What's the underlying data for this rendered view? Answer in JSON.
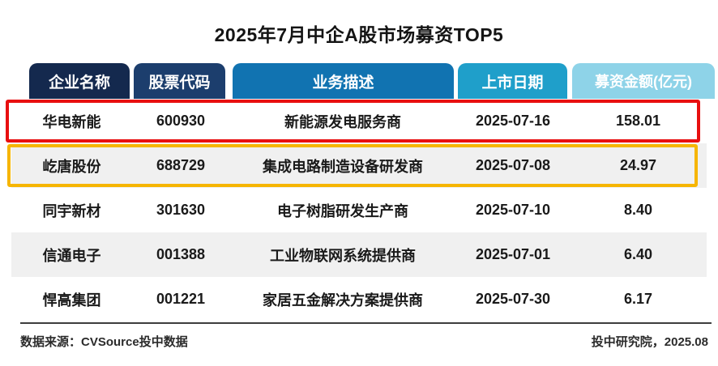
{
  "title": "2025年7月中企A股市场募资TOP5",
  "colors": {
    "header1": "#14294e",
    "header2": "#1c3e6d",
    "header3": "#1173b1",
    "header4": "#1f9fca",
    "header5": "#8ed3e8",
    "hlred": "#e80f10",
    "hlyellow": "#f6b500",
    "rowalt": "#f0f0f0"
  },
  "table": {
    "headers": [
      "企业名称",
      "股票代码",
      "业务描述",
      "上市日期",
      "募资金额(亿元)"
    ],
    "rows": [
      {
        "name": "华电新能",
        "code": "600930",
        "desc": "新能源发电服务商",
        "date": "2025-07-16",
        "amount": "158.01",
        "highlight": "red"
      },
      {
        "name": "屹唐股份",
        "code": "688729",
        "desc": "集成电路制造设备研发商",
        "date": "2025-07-08",
        "amount": "24.97",
        "highlight": "yellow"
      },
      {
        "name": "同宇新材",
        "code": "301630",
        "desc": "电子树脂研发生产商",
        "date": "2025-07-10",
        "amount": "8.40",
        "highlight": "none"
      },
      {
        "name": "信通电子",
        "code": "001388",
        "desc": "工业物联网系统提供商",
        "date": "2025-07-01",
        "amount": "6.40",
        "highlight": "none"
      },
      {
        "name": "悍高集团",
        "code": "001221",
        "desc": "家居五金解决方案提供商",
        "date": "2025-07-30",
        "amount": "6.17",
        "highlight": "none"
      }
    ]
  },
  "footer": {
    "source": "数据来源：CVSource投中数据",
    "credit": "投中研究院，2025.08"
  },
  "chart_data": {
    "type": "table",
    "title": "2025年7月中企A股市场募资TOP5",
    "columns": [
      "企业名称",
      "股票代码",
      "业务描述",
      "上市日期",
      "募资金额(亿元)"
    ],
    "rows": [
      [
        "华电新能",
        "600930",
        "新能源发电服务商",
        "2025-07-16",
        158.01
      ],
      [
        "屹唐股份",
        "688729",
        "集成电路制造设备研发商",
        "2025-07-08",
        24.97
      ],
      [
        "同宇新材",
        "301630",
        "电子树脂研发生产商",
        "2025-07-10",
        8.4
      ],
      [
        "信通电子",
        "001388",
        "工业物联网系统提供商",
        "2025-07-01",
        6.4
      ],
      [
        "悍高集团",
        "001221",
        "家居五金解决方案提供商",
        "2025-07-30",
        6.17
      ]
    ],
    "notes": "row 1 outlined in red, row 2 outlined in amber; amounts in 亿元 (100M CNY)"
  }
}
